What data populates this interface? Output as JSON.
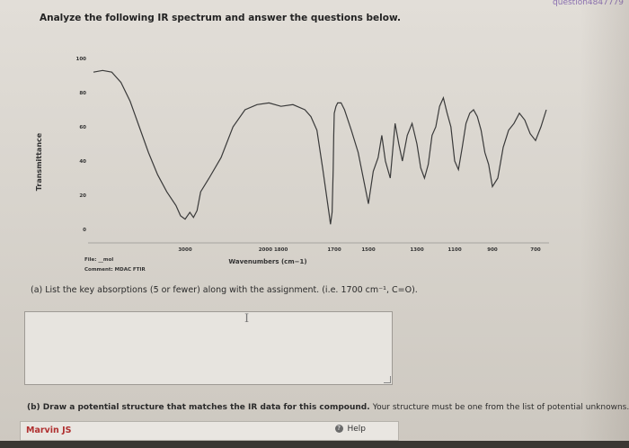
{
  "page": {
    "url_fragment": "question4847779",
    "title": "Analyze the following IR spectrum and answer the questions below."
  },
  "spectrum": {
    "y_axis_label": "Transmittance",
    "y_ticks": [
      "100",
      "80",
      "60",
      "40",
      "20",
      "0"
    ],
    "x_ticks": [
      "3000",
      "2000  1800",
      "1700",
      "1500",
      "1300",
      "1100",
      "900",
      "700"
    ],
    "x_axis_label": "Wavenumbers (cm−1)",
    "file_label": "File: __mol",
    "comment_label": "Comment: MDAC FTIR"
  },
  "question_a": {
    "text": "(a) List the key absorptions (5 or fewer) along with the assignment. (i.e. 1700 cm⁻¹, C=O).",
    "answer_value": "I"
  },
  "question_b": {
    "prefix": "(b) Draw a potential structure that matches the IR data for this compound.",
    "suffix": "Your structure must be one from the list of potential unknowns."
  },
  "editor": {
    "name": "Marvin JS",
    "help_label": "Help"
  },
  "chart_data": {
    "type": "line",
    "ylabel": "Transmittance",
    "xlabel": "Wavenumbers (cm−1)",
    "ylim": [
      0,
      100
    ],
    "grid": false,
    "x_tick_labels": [
      "3000",
      "2000",
      "1800",
      "1700",
      "1500",
      "1300",
      "1100",
      "900",
      "700"
    ],
    "series": [
      {
        "x": [
          4000,
          3900,
          3800,
          3700,
          3600,
          3500,
          3400,
          3300,
          3200,
          3100,
          3050,
          3000,
          2960,
          2930,
          2900,
          2870,
          2800,
          2700,
          2600,
          2500,
          2400,
          2300,
          2200,
          2100,
          2000,
          1950,
          1900,
          1850,
          1800,
          1770,
          1740,
          1720,
          1710,
          1700,
          1690,
          1680,
          1660,
          1640,
          1600,
          1560,
          1530,
          1500,
          1480,
          1460,
          1445,
          1430,
          1410,
          1390,
          1375,
          1360,
          1340,
          1320,
          1300,
          1280,
          1260,
          1240,
          1220,
          1200,
          1180,
          1160,
          1140,
          1120,
          1100,
          1080,
          1060,
          1040,
          1020,
          1000,
          980,
          960,
          940,
          920,
          900,
          880,
          860,
          840,
          820,
          800,
          780,
          760,
          740,
          720,
          700
        ],
        "y": [
          92,
          93,
          92,
          86,
          75,
          60,
          45,
          32,
          22,
          14,
          8,
          6,
          10,
          7,
          11,
          22,
          30,
          42,
          60,
          70,
          73,
          74,
          72,
          73,
          70,
          66,
          58,
          35,
          10,
          3,
          10,
          35,
          55,
          68,
          72,
          74,
          74,
          70,
          58,
          45,
          30,
          15,
          34,
          42,
          55,
          40,
          30,
          62,
          50,
          40,
          55,
          62,
          50,
          36,
          30,
          38,
          55,
          60,
          72,
          77,
          68,
          60,
          40,
          35,
          48,
          62,
          68,
          70,
          66,
          58,
          45,
          38,
          25,
          30,
          48,
          58,
          62,
          68,
          64,
          56,
          52,
          60,
          70
        ]
      }
    ]
  }
}
